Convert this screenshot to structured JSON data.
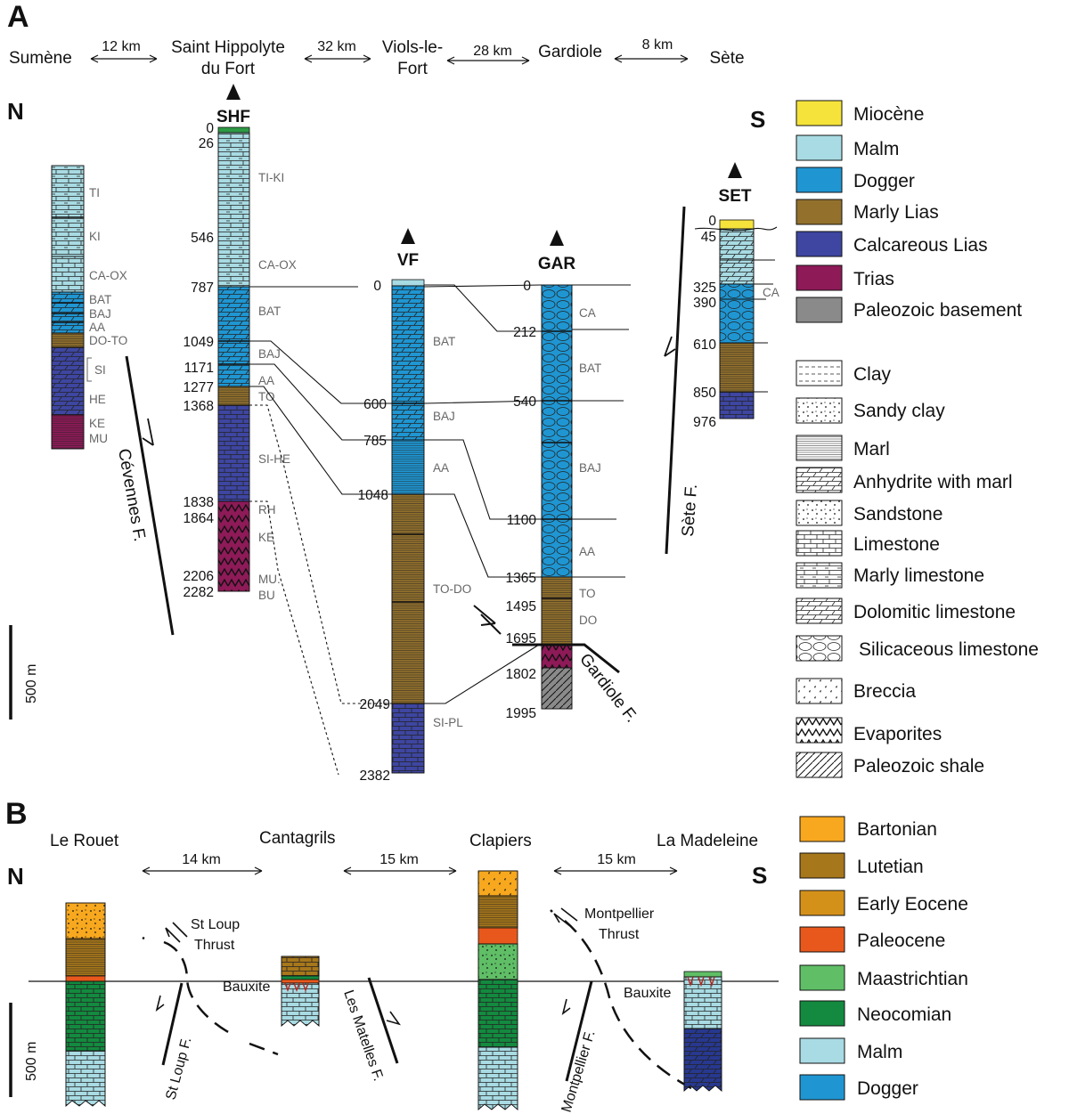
{
  "colors": {
    "miocene": "#f5e33b",
    "malm": "#a8dbe3",
    "dogger": "#1f96d2",
    "marly_lias": "#93712d",
    "calcareous_lias": "#3e46a1",
    "trias": "#8e1a58",
    "paleozoic": "#8a8a8a",
    "bartonian": "#f7a81e",
    "lutetian": "#a7771b",
    "early_eocene": "#d4911a",
    "paleocene": "#e8581c",
    "maastrichtian": "#5fbe66",
    "neocomian": "#138a3f",
    "green_top": "#2e9b45"
  },
  "panel_a": {
    "label": "A",
    "localities": [
      "Sumène",
      "Saint Hippolyte",
      "du Fort",
      "Viols-le-",
      "Fort",
      "Gardiole",
      "Sète"
    ],
    "distances": [
      "12 km",
      "32 km",
      "28 km",
      "8 km"
    ],
    "north": "N",
    "south": "S",
    "wells": [
      "SHF",
      "VF",
      "GAR",
      "SET"
    ],
    "scale": "500 m",
    "faults": [
      "Cévennes F.",
      "Gardiole F.",
      "Sète F."
    ],
    "sumene_units": [
      "TI",
      "KI",
      "CA-OX",
      "BAT",
      "BAJ",
      "AA",
      "DO-TO",
      "SI",
      "HE",
      "KE",
      "MU"
    ],
    "shf_depths": [
      "0",
      "26",
      "546",
      "787",
      "1049",
      "1171",
      "1277",
      "1368",
      "1838",
      "1864",
      "2206",
      "2282"
    ],
    "shf_units": [
      "TI-KI",
      "CA-OX",
      "BAT",
      "BAJ",
      "AA",
      "TO",
      "SI-HE",
      "RH",
      "KE",
      "MU.",
      "BU"
    ],
    "vf_depths": [
      "0",
      "600",
      "785",
      "1048",
      "2049",
      "2382"
    ],
    "vf_units": [
      "BAT",
      "BAJ",
      "AA",
      "TO-DO",
      "SI-PL"
    ],
    "gar_depths": [
      "0",
      "212",
      "540",
      "1100",
      "1365",
      "1495",
      "1695",
      "1802",
      "1995"
    ],
    "gar_units": [
      "CA",
      "BAT",
      "BAJ",
      "AA",
      "TO",
      "DO"
    ],
    "set_depths": [
      "0",
      "45",
      "325",
      "390",
      "610",
      "850",
      "976"
    ],
    "set_units": [
      "CA"
    ]
  },
  "legend_a": {
    "ages": [
      "Miocène",
      "Malm",
      "Dogger",
      "Marly Lias",
      "Calcareous Lias",
      "Trias",
      "Paleozoic basement"
    ],
    "lithologies": [
      "Clay",
      "Sandy clay",
      "Marl",
      "Anhydrite with marl",
      "Sandstone",
      "Limestone",
      "Marly limestone",
      "Dolomitic limestone",
      "Silicaceous limestone",
      "Breccia",
      "Evaporites",
      "Paleozoic shale"
    ]
  },
  "panel_b": {
    "label": "B",
    "localities": [
      "Le Rouet",
      "Cantagrils",
      "Clapiers",
      "La Madeleine"
    ],
    "distances": [
      "14 km",
      "15 km",
      "15 km"
    ],
    "north": "N",
    "south": "S",
    "thrusts": [
      "St Loup",
      "Thrust",
      "Montpellier",
      "Thrust"
    ],
    "bauxite": "Bauxite",
    "faults": [
      "St Loup F.",
      "Les Matelles F.",
      "Montpellier F."
    ],
    "scale": "500 m"
  },
  "legend_b": {
    "ages": [
      "Bartonian",
      "Lutetian",
      "Early Eocene",
      "Paleocene",
      "Maastrichtian",
      "Neocomian",
      "Malm",
      "Dogger"
    ]
  }
}
